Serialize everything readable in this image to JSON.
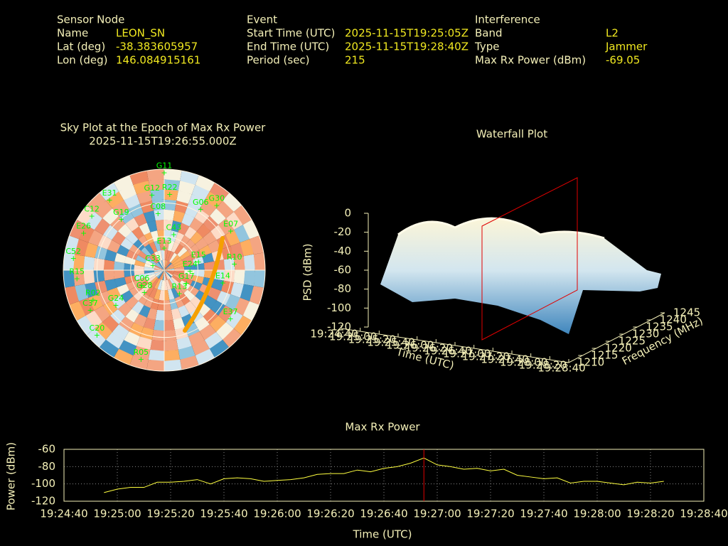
{
  "header": {
    "sensor_node": {
      "title": "Sensor Node",
      "rows": [
        [
          "Name",
          "LEON_SN"
        ],
        [
          "Lat (deg)",
          "-38.383605957"
        ],
        [
          "Lon (deg)",
          "146.084915161"
        ]
      ]
    },
    "event": {
      "title": "Event",
      "rows": [
        [
          "Start Time (UTC)",
          "2025-11-15T19:25:05Z"
        ],
        [
          "End Time (UTC)",
          "2025-11-15T19:28:40Z"
        ],
        [
          "Period (sec)",
          "215"
        ]
      ]
    },
    "interference": {
      "title": "Interference",
      "rows": [
        [
          "Band",
          "L2"
        ],
        [
          "Type",
          "Jammer"
        ],
        [
          "Max Rx Power (dBm)",
          "-69.05"
        ]
      ]
    }
  },
  "chart_data": [
    {
      "type": "polar",
      "title": "Sky Plot at the Epoch of Max Rx Power",
      "subtitle": "2025-11-15T19:26:55.000Z",
      "color": "#00ff00",
      "satellites": [
        {
          "name": "G11",
          "az": 0,
          "el": 1
        },
        {
          "name": "G30",
          "az": 38,
          "el": 14
        },
        {
          "name": "G06",
          "az": 30,
          "el": 25
        },
        {
          "name": "E07",
          "az": 58,
          "el": 20
        },
        {
          "name": "R10",
          "az": 83,
          "el": 27
        },
        {
          "name": "C43",
          "az": 14,
          "el": 55
        },
        {
          "name": "E13",
          "az": 0,
          "el": 68
        },
        {
          "name": "E24",
          "az": 87,
          "el": 67
        },
        {
          "name": "R13",
          "az": 144,
          "el": 67
        },
        {
          "name": "G17",
          "az": 116,
          "el": 68
        },
        {
          "name": "E14",
          "az": 100,
          "el": 37
        },
        {
          "name": "E37",
          "az": 125,
          "el": 18
        },
        {
          "name": "C20",
          "az": 227,
          "el": 8
        },
        {
          "name": "R05",
          "az": 195,
          "el": 10
        },
        {
          "name": "G24",
          "az": 236,
          "el": 38
        },
        {
          "name": "C06",
          "az": 240,
          "el": 67
        },
        {
          "name": "G28",
          "az": 225,
          "el": 65
        },
        {
          "name": "C52",
          "az": 279,
          "el": 8
        },
        {
          "name": "R15",
          "az": 266,
          "el": 12
        },
        {
          "name": "R02",
          "az": 249,
          "el": 22
        },
        {
          "name": "C37",
          "az": 243,
          "el": 16
        },
        {
          "name": "E31",
          "az": 323,
          "el": 9
        },
        {
          "name": "C12",
          "az": 308,
          "el": 8
        },
        {
          "name": "G19",
          "az": 321,
          "el": 29
        },
        {
          "name": "G12",
          "az": 351,
          "el": 20
        },
        {
          "name": "R22",
          "az": 4,
          "el": 20
        },
        {
          "name": "C08",
          "az": 354,
          "el": 37
        },
        {
          "name": "C33",
          "az": 302,
          "el": 78
        },
        {
          "name": "E15",
          "az": 73,
          "el": 58
        },
        {
          "name": "E26",
          "az": 296,
          "el": 10
        }
      ]
    },
    {
      "type": "surface",
      "title": "Waterfall Plot",
      "zlabel": "PSD (dBm)",
      "xlabel": "Time (UTC)",
      "ylabel": "Frequency (MHz)",
      "zlim": [
        -120,
        0
      ],
      "zticks": [
        0,
        -20,
        -40,
        -60,
        -80,
        -100,
        -120
      ],
      "ylim": [
        1210,
        1245
      ],
      "yticks": [
        1210,
        1215,
        1220,
        1225,
        1230,
        1235,
        1240,
        1245
      ],
      "xlim": [
        "19:24:40",
        "19:28:40"
      ],
      "xticks": [
        "19:24:40",
        "19:25:00",
        "19:25:20",
        "19:25:40",
        "19:26:00",
        "19:26:20",
        "19:26:40",
        "19:27:00",
        "19:27:20",
        "19:27:40",
        "19:28:00",
        "19:28:20",
        "19:28:40"
      ]
    },
    {
      "type": "line",
      "title": "Max Rx Power",
      "xlabel": "Time (UTC)",
      "ylabel": "Power (dBm)",
      "color": "#ffff40",
      "marker": "19:26:55",
      "marker_color": "#e00000",
      "grid": true,
      "xlim": [
        "19:24:40",
        "19:28:40"
      ],
      "xticks": [
        "19:24:40",
        "19:25:00",
        "19:25:20",
        "19:25:40",
        "19:26:00",
        "19:26:20",
        "19:26:40",
        "19:27:00",
        "19:27:20",
        "19:27:40",
        "19:28:00",
        "19:28:20",
        "19:28:40"
      ],
      "ylim": [
        -120,
        -60
      ],
      "yticks": [
        -60,
        -80,
        -100,
        -120
      ],
      "x": [
        "19:24:55",
        "19:25:00",
        "19:25:05",
        "19:25:10",
        "19:25:15",
        "19:25:20",
        "19:25:25",
        "19:25:30",
        "19:25:35",
        "19:25:40",
        "19:25:45",
        "19:25:50",
        "19:25:55",
        "19:26:00",
        "19:26:05",
        "19:26:10",
        "19:26:15",
        "19:26:20",
        "19:26:25",
        "19:26:30",
        "19:26:35",
        "19:26:40",
        "19:26:45",
        "19:26:50",
        "19:26:55",
        "19:27:00",
        "19:27:05",
        "19:27:10",
        "19:27:15",
        "19:27:20",
        "19:27:25",
        "19:27:30",
        "19:27:35",
        "19:27:40",
        "19:27:45",
        "19:27:50",
        "19:27:55",
        "19:28:00",
        "19:28:05",
        "19:28:10",
        "19:28:15",
        "19:28:20",
        "19:28:25"
      ],
      "values": [
        -110,
        -106,
        -104,
        -104,
        -98,
        -98,
        -97,
        -95,
        -100,
        -94,
        -93,
        -94,
        -97,
        -96,
        -95,
        -93,
        -89,
        -88,
        -88,
        -84,
        -86,
        -82,
        -80,
        -76,
        -70,
        -78,
        -80,
        -83,
        -82,
        -85,
        -83,
        -90,
        -92,
        -94,
        -93,
        -99,
        -97,
        -97,
        -99,
        -101,
        -98,
        -99,
        -97
      ]
    }
  ]
}
